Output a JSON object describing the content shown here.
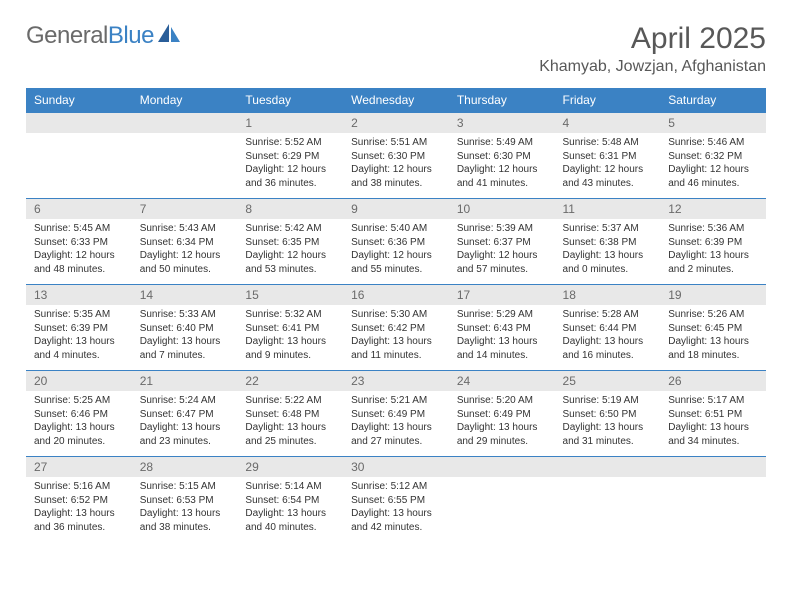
{
  "logo": {
    "text1": "General",
    "text2": "Blue"
  },
  "title": "April 2025",
  "location": "Khamyab, Jowzjan, Afghanistan",
  "colors": {
    "header_bg": "#3b82c4",
    "header_text": "#ffffff",
    "daynum_bg": "#e8e8e8",
    "daynum_text": "#6a6a6a",
    "body_text": "#333333",
    "title_text": "#585858",
    "row_border": "#3b82c4"
  },
  "weekdays": [
    "Sunday",
    "Monday",
    "Tuesday",
    "Wednesday",
    "Thursday",
    "Friday",
    "Saturday"
  ],
  "weeks": [
    [
      {
        "n": "",
        "sr": "",
        "ss": "",
        "dl": ""
      },
      {
        "n": "",
        "sr": "",
        "ss": "",
        "dl": ""
      },
      {
        "n": "1",
        "sr": "Sunrise: 5:52 AM",
        "ss": "Sunset: 6:29 PM",
        "dl": "Daylight: 12 hours and 36 minutes."
      },
      {
        "n": "2",
        "sr": "Sunrise: 5:51 AM",
        "ss": "Sunset: 6:30 PM",
        "dl": "Daylight: 12 hours and 38 minutes."
      },
      {
        "n": "3",
        "sr": "Sunrise: 5:49 AM",
        "ss": "Sunset: 6:30 PM",
        "dl": "Daylight: 12 hours and 41 minutes."
      },
      {
        "n": "4",
        "sr": "Sunrise: 5:48 AM",
        "ss": "Sunset: 6:31 PM",
        "dl": "Daylight: 12 hours and 43 minutes."
      },
      {
        "n": "5",
        "sr": "Sunrise: 5:46 AM",
        "ss": "Sunset: 6:32 PM",
        "dl": "Daylight: 12 hours and 46 minutes."
      }
    ],
    [
      {
        "n": "6",
        "sr": "Sunrise: 5:45 AM",
        "ss": "Sunset: 6:33 PM",
        "dl": "Daylight: 12 hours and 48 minutes."
      },
      {
        "n": "7",
        "sr": "Sunrise: 5:43 AM",
        "ss": "Sunset: 6:34 PM",
        "dl": "Daylight: 12 hours and 50 minutes."
      },
      {
        "n": "8",
        "sr": "Sunrise: 5:42 AM",
        "ss": "Sunset: 6:35 PM",
        "dl": "Daylight: 12 hours and 53 minutes."
      },
      {
        "n": "9",
        "sr": "Sunrise: 5:40 AM",
        "ss": "Sunset: 6:36 PM",
        "dl": "Daylight: 12 hours and 55 minutes."
      },
      {
        "n": "10",
        "sr": "Sunrise: 5:39 AM",
        "ss": "Sunset: 6:37 PM",
        "dl": "Daylight: 12 hours and 57 minutes."
      },
      {
        "n": "11",
        "sr": "Sunrise: 5:37 AM",
        "ss": "Sunset: 6:38 PM",
        "dl": "Daylight: 13 hours and 0 minutes."
      },
      {
        "n": "12",
        "sr": "Sunrise: 5:36 AM",
        "ss": "Sunset: 6:39 PM",
        "dl": "Daylight: 13 hours and 2 minutes."
      }
    ],
    [
      {
        "n": "13",
        "sr": "Sunrise: 5:35 AM",
        "ss": "Sunset: 6:39 PM",
        "dl": "Daylight: 13 hours and 4 minutes."
      },
      {
        "n": "14",
        "sr": "Sunrise: 5:33 AM",
        "ss": "Sunset: 6:40 PM",
        "dl": "Daylight: 13 hours and 7 minutes."
      },
      {
        "n": "15",
        "sr": "Sunrise: 5:32 AM",
        "ss": "Sunset: 6:41 PM",
        "dl": "Daylight: 13 hours and 9 minutes."
      },
      {
        "n": "16",
        "sr": "Sunrise: 5:30 AM",
        "ss": "Sunset: 6:42 PM",
        "dl": "Daylight: 13 hours and 11 minutes."
      },
      {
        "n": "17",
        "sr": "Sunrise: 5:29 AM",
        "ss": "Sunset: 6:43 PM",
        "dl": "Daylight: 13 hours and 14 minutes."
      },
      {
        "n": "18",
        "sr": "Sunrise: 5:28 AM",
        "ss": "Sunset: 6:44 PM",
        "dl": "Daylight: 13 hours and 16 minutes."
      },
      {
        "n": "19",
        "sr": "Sunrise: 5:26 AM",
        "ss": "Sunset: 6:45 PM",
        "dl": "Daylight: 13 hours and 18 minutes."
      }
    ],
    [
      {
        "n": "20",
        "sr": "Sunrise: 5:25 AM",
        "ss": "Sunset: 6:46 PM",
        "dl": "Daylight: 13 hours and 20 minutes."
      },
      {
        "n": "21",
        "sr": "Sunrise: 5:24 AM",
        "ss": "Sunset: 6:47 PM",
        "dl": "Daylight: 13 hours and 23 minutes."
      },
      {
        "n": "22",
        "sr": "Sunrise: 5:22 AM",
        "ss": "Sunset: 6:48 PM",
        "dl": "Daylight: 13 hours and 25 minutes."
      },
      {
        "n": "23",
        "sr": "Sunrise: 5:21 AM",
        "ss": "Sunset: 6:49 PM",
        "dl": "Daylight: 13 hours and 27 minutes."
      },
      {
        "n": "24",
        "sr": "Sunrise: 5:20 AM",
        "ss": "Sunset: 6:49 PM",
        "dl": "Daylight: 13 hours and 29 minutes."
      },
      {
        "n": "25",
        "sr": "Sunrise: 5:19 AM",
        "ss": "Sunset: 6:50 PM",
        "dl": "Daylight: 13 hours and 31 minutes."
      },
      {
        "n": "26",
        "sr": "Sunrise: 5:17 AM",
        "ss": "Sunset: 6:51 PM",
        "dl": "Daylight: 13 hours and 34 minutes."
      }
    ],
    [
      {
        "n": "27",
        "sr": "Sunrise: 5:16 AM",
        "ss": "Sunset: 6:52 PM",
        "dl": "Daylight: 13 hours and 36 minutes."
      },
      {
        "n": "28",
        "sr": "Sunrise: 5:15 AM",
        "ss": "Sunset: 6:53 PM",
        "dl": "Daylight: 13 hours and 38 minutes."
      },
      {
        "n": "29",
        "sr": "Sunrise: 5:14 AM",
        "ss": "Sunset: 6:54 PM",
        "dl": "Daylight: 13 hours and 40 minutes."
      },
      {
        "n": "30",
        "sr": "Sunrise: 5:12 AM",
        "ss": "Sunset: 6:55 PM",
        "dl": "Daylight: 13 hours and 42 minutes."
      },
      {
        "n": "",
        "sr": "",
        "ss": "",
        "dl": ""
      },
      {
        "n": "",
        "sr": "",
        "ss": "",
        "dl": ""
      },
      {
        "n": "",
        "sr": "",
        "ss": "",
        "dl": ""
      }
    ]
  ]
}
